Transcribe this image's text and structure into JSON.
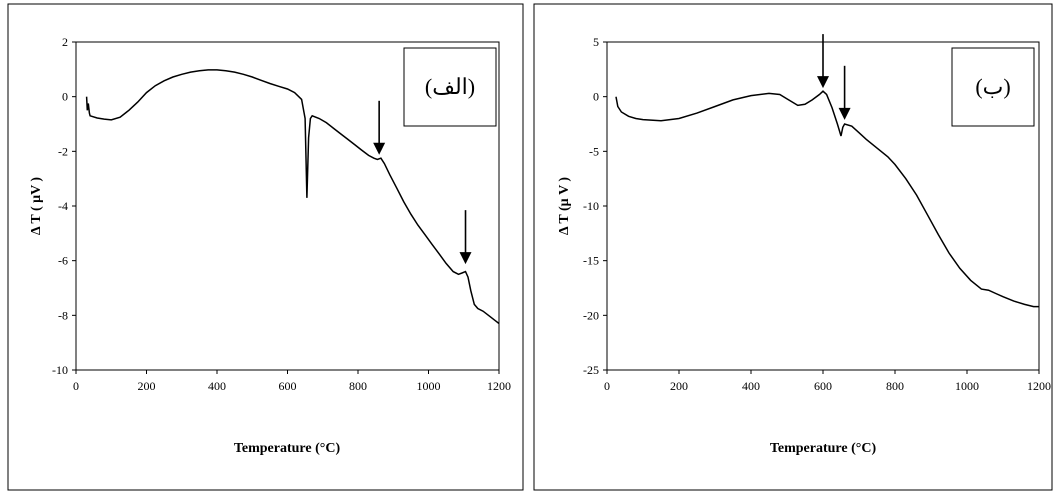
{
  "chart_data": [
    {
      "type": "line",
      "panel_label": "(الف)",
      "xlabel": "Temperature (°C)",
      "ylabel": "Δ T  ( μV )",
      "xlim": [
        0,
        1200
      ],
      "ylim": [
        -10,
        2
      ],
      "x_ticks": [
        0,
        200,
        400,
        600,
        800,
        1000,
        1200
      ],
      "y_ticks": [
        2,
        0,
        -2,
        -4,
        -6,
        -8,
        -10
      ],
      "grid": false,
      "series": [
        {
          "color": "#000000",
          "points": [
            [
              30,
              0
            ],
            [
              32,
              -0.5
            ],
            [
              35,
              -0.25
            ],
            [
              38,
              -0.6
            ],
            [
              40,
              -0.7
            ],
            [
              60,
              -0.78
            ],
            [
              80,
              -0.82
            ],
            [
              100,
              -0.85
            ],
            [
              125,
              -0.75
            ],
            [
              150,
              -0.5
            ],
            [
              175,
              -0.2
            ],
            [
              200,
              0.15
            ],
            [
              225,
              0.4
            ],
            [
              250,
              0.58
            ],
            [
              275,
              0.72
            ],
            [
              300,
              0.82
            ],
            [
              325,
              0.9
            ],
            [
              350,
              0.95
            ],
            [
              375,
              0.98
            ],
            [
              400,
              0.98
            ],
            [
              425,
              0.95
            ],
            [
              450,
              0.9
            ],
            [
              475,
              0.82
            ],
            [
              500,
              0.72
            ],
            [
              525,
              0.6
            ],
            [
              550,
              0.48
            ],
            [
              575,
              0.38
            ],
            [
              600,
              0.28
            ],
            [
              620,
              0.15
            ],
            [
              640,
              -0.1
            ],
            [
              650,
              -0.8
            ],
            [
              655,
              -3.7
            ],
            [
              660,
              -1.5
            ],
            [
              665,
              -0.8
            ],
            [
              670,
              -0.7
            ],
            [
              690,
              -0.8
            ],
            [
              710,
              -0.95
            ],
            [
              730,
              -1.15
            ],
            [
              750,
              -1.35
            ],
            [
              770,
              -1.55
            ],
            [
              790,
              -1.75
            ],
            [
              810,
              -1.95
            ],
            [
              830,
              -2.15
            ],
            [
              845,
              -2.25
            ],
            [
              855,
              -2.3
            ],
            [
              865,
              -2.25
            ],
            [
              875,
              -2.45
            ],
            [
              890,
              -2.85
            ],
            [
              910,
              -3.35
            ],
            [
              930,
              -3.85
            ],
            [
              950,
              -4.3
            ],
            [
              970,
              -4.7
            ],
            [
              990,
              -5.05
            ],
            [
              1010,
              -5.4
            ],
            [
              1030,
              -5.75
            ],
            [
              1050,
              -6.1
            ],
            [
              1070,
              -6.4
            ],
            [
              1085,
              -6.5
            ],
            [
              1095,
              -6.45
            ],
            [
              1105,
              -6.4
            ],
            [
              1112,
              -6.6
            ],
            [
              1120,
              -7.1
            ],
            [
              1130,
              -7.6
            ],
            [
              1140,
              -7.75
            ],
            [
              1155,
              -7.85
            ],
            [
              1175,
              -8.05
            ],
            [
              1190,
              -8.2
            ],
            [
              1200,
              -8.3
            ]
          ]
        }
      ],
      "annotations": [
        {
          "type": "arrow",
          "x": 860,
          "y": -2.2
        },
        {
          "type": "arrow",
          "x": 1105,
          "y": -6.2
        }
      ]
    },
    {
      "type": "line",
      "panel_label": "(ب)",
      "xlabel": "Temperature (°C)",
      "ylabel": "Δ T (μ V )",
      "xlim": [
        0,
        1200
      ],
      "ylim": [
        -25,
        5
      ],
      "x_ticks": [
        0,
        200,
        400,
        600,
        800,
        1000,
        1200
      ],
      "y_ticks": [
        5,
        0,
        -5,
        -10,
        -15,
        -20,
        -25
      ],
      "grid": false,
      "series": [
        {
          "color": "#000000",
          "points": [
            [
              25,
              0
            ],
            [
              30,
              -0.9
            ],
            [
              40,
              -1.4
            ],
            [
              60,
              -1.8
            ],
            [
              80,
              -2.0
            ],
            [
              100,
              -2.1
            ],
            [
              150,
              -2.2
            ],
            [
              200,
              -2.0
            ],
            [
              250,
              -1.5
            ],
            [
              300,
              -0.9
            ],
            [
              350,
              -0.3
            ],
            [
              400,
              0.1
            ],
            [
              450,
              0.3
            ],
            [
              480,
              0.2
            ],
            [
              500,
              -0.2
            ],
            [
              530,
              -0.8
            ],
            [
              550,
              -0.7
            ],
            [
              570,
              -0.3
            ],
            [
              590,
              0.2
            ],
            [
              600,
              0.5
            ],
            [
              610,
              0.2
            ],
            [
              625,
              -1.0
            ],
            [
              640,
              -2.5
            ],
            [
              650,
              -3.6
            ],
            [
              655,
              -2.8
            ],
            [
              660,
              -2.5
            ],
            [
              680,
              -2.7
            ],
            [
              700,
              -3.3
            ],
            [
              720,
              -3.9
            ],
            [
              750,
              -4.7
            ],
            [
              780,
              -5.5
            ],
            [
              800,
              -6.2
            ],
            [
              830,
              -7.5
            ],
            [
              860,
              -9.0
            ],
            [
              890,
              -10.8
            ],
            [
              920,
              -12.6
            ],
            [
              950,
              -14.3
            ],
            [
              980,
              -15.7
            ],
            [
              1010,
              -16.8
            ],
            [
              1040,
              -17.6
            ],
            [
              1060,
              -17.7
            ],
            [
              1080,
              -18.0
            ],
            [
              1100,
              -18.3
            ],
            [
              1130,
              -18.7
            ],
            [
              1160,
              -19.0
            ],
            [
              1185,
              -19.2
            ],
            [
              1200,
              -19.2
            ]
          ]
        }
      ],
      "annotations": [
        {
          "type": "arrow",
          "x": 600,
          "y": 0.6
        },
        {
          "type": "arrow",
          "x": 660,
          "y": -2.3
        }
      ]
    }
  ]
}
